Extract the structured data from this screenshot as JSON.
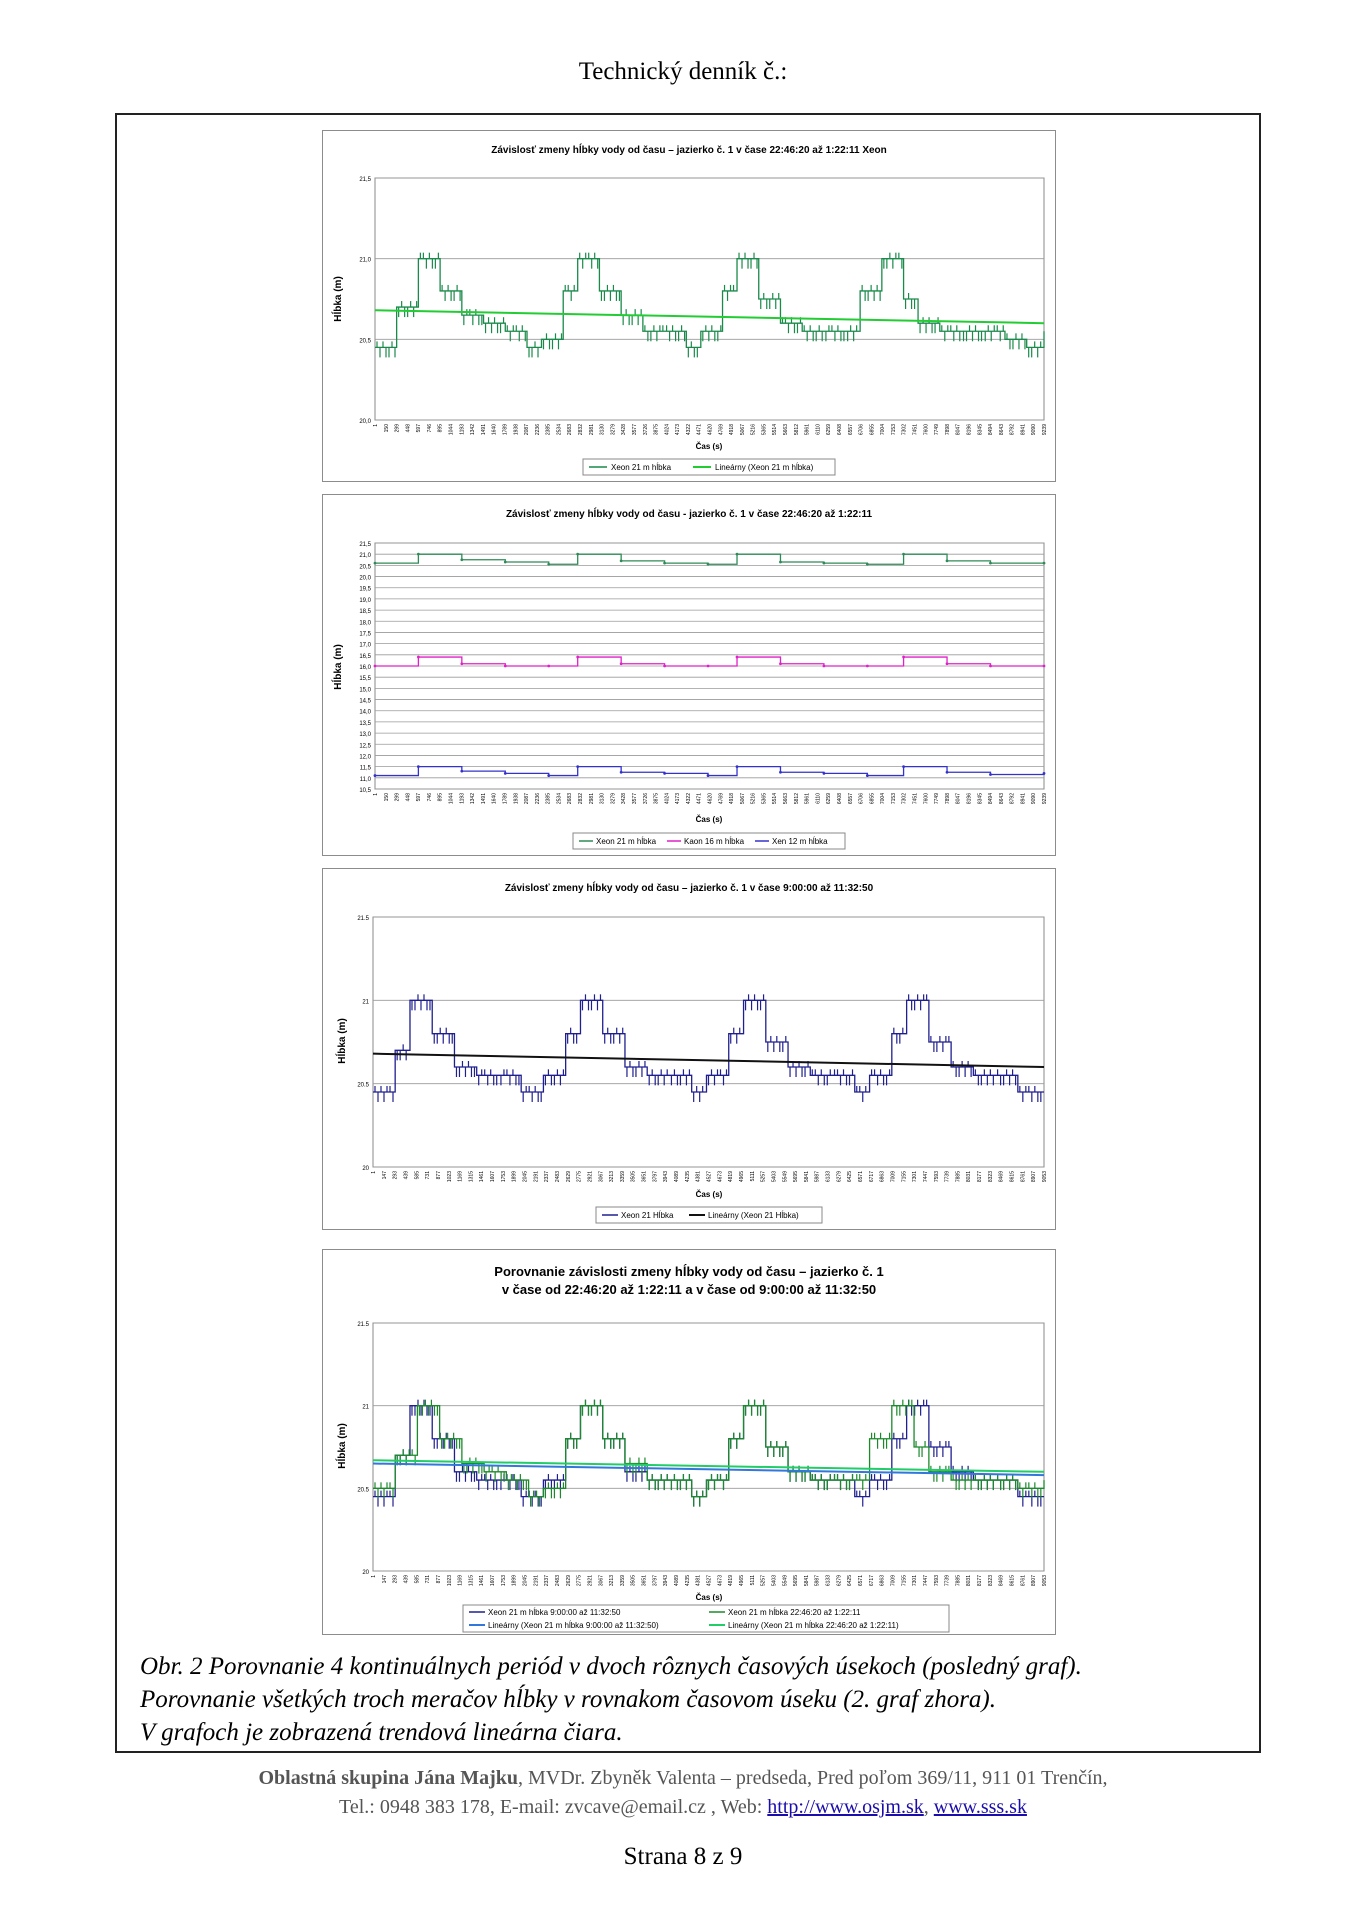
{
  "header": {
    "title": "Technický denník č.:"
  },
  "charts": [
    {
      "title": "Závislosť zmeny hĺbky vody od času – jazierko č. 1 v čase 22:46:20 až 1:22:11 Xeon",
      "ylabel": "Hĺbka (m)",
      "xlabel": "Čas (s)",
      "ytick_labels": [
        "21,5",
        "21,0",
        "20,5",
        "20,0"
      ],
      "xtick_labels": [
        "1",
        "150",
        "299",
        "448",
        "597",
        "746",
        "895",
        "1044",
        "1193",
        "1342",
        "1491",
        "1640",
        "1789",
        "1938",
        "2087",
        "2236",
        "2385",
        "2534",
        "2683",
        "2832",
        "2981",
        "3130",
        "3279",
        "3428",
        "3577",
        "3726",
        "3875",
        "4024",
        "4173",
        "4322",
        "4471",
        "4620",
        "4769",
        "4918",
        "5067",
        "5216",
        "5365",
        "5514",
        "5663",
        "5812",
        "5961",
        "6110",
        "6259",
        "6408",
        "6557",
        "6706",
        "6855",
        "7004",
        "7153",
        "7302",
        "7451",
        "7600",
        "7749",
        "7898",
        "8047",
        "8196",
        "8345",
        "8494",
        "8643",
        "8792",
        "8941",
        "9090",
        "9239"
      ],
      "legend": [
        "Xeon 21 m hĺbka",
        "Lineárny (Xeon 21 m hĺbka)"
      ],
      "colors": {
        "series": "#1a8a4a",
        "trend": "#22cc33"
      }
    },
    {
      "title": "Závislosť zmeny hĺbky vody od času - jazierko č. 1 v čase 22:46:20 až 1:22:11",
      "ylabel": "Hĺbka (m)",
      "xlabel": "Čas (s)",
      "ytick_labels": [
        "21,5",
        "21,0",
        "20,5",
        "20,0",
        "19,5",
        "19,0",
        "18,5",
        "18,0",
        "17,5",
        "17,0",
        "16,5",
        "16,0",
        "15,5",
        "15,0",
        "14,5",
        "14,0",
        "13,5",
        "13,0",
        "12,5",
        "12,0",
        "11,5",
        "11,0",
        "10,5"
      ],
      "xtick_labels": [
        "1",
        "150",
        "299",
        "448",
        "597",
        "746",
        "895",
        "1044",
        "1193",
        "1342",
        "1491",
        "1640",
        "1789",
        "1938",
        "2087",
        "2236",
        "2385",
        "2534",
        "2683",
        "2832",
        "2981",
        "3130",
        "3279",
        "3428",
        "3577",
        "3726",
        "3875",
        "4024",
        "4173",
        "4322",
        "4471",
        "4620",
        "4769",
        "4918",
        "5067",
        "5216",
        "5365",
        "5514",
        "5663",
        "5812",
        "5961",
        "6110",
        "6259",
        "6408",
        "6557",
        "6706",
        "6855",
        "7004",
        "7153",
        "7302",
        "7451",
        "7600",
        "7749",
        "7898",
        "8047",
        "8196",
        "8345",
        "8494",
        "8643",
        "8792",
        "8941",
        "9090",
        "9239"
      ],
      "legend": [
        "Xeon 21 m hĺbka",
        "Kaon 16 m hĺbka",
        "Xen 12 m hĺbka"
      ],
      "colors": {
        "s1": "#2e8b57",
        "s2": "#e020c8",
        "s3": "#3333cc"
      }
    },
    {
      "title": "Závislosť zmeny hĺbky vody od času – jazierko č. 1 v čase 9:00:00 až 11:32:50",
      "ylabel": "Hĺbka (m)",
      "xlabel": "Čas (s)",
      "ytick_labels": [
        "21.5",
        "21",
        "20.5",
        "20"
      ],
      "xtick_labels": [
        "1",
        "147",
        "293",
        "439",
        "585",
        "731",
        "877",
        "1023",
        "1169",
        "1315",
        "1461",
        "1607",
        "1753",
        "1899",
        "2045",
        "2191",
        "2337",
        "2483",
        "2629",
        "2775",
        "2921",
        "3067",
        "3213",
        "3359",
        "3505",
        "3651",
        "3797",
        "3943",
        "4089",
        "4235",
        "4381",
        "4527",
        "4673",
        "4819",
        "4965",
        "5111",
        "5257",
        "5403",
        "5549",
        "5695",
        "5841",
        "5987",
        "6133",
        "6279",
        "6425",
        "6571",
        "6717",
        "6863",
        "7009",
        "7155",
        "7301",
        "7447",
        "7593",
        "7739",
        "7885",
        "8031",
        "8177",
        "8323",
        "8469",
        "8615",
        "8761",
        "8907",
        "9053"
      ],
      "legend": [
        "Xeon 21 Hĺbka",
        "Lineárny (Xeon 21 Hĺbka)"
      ],
      "colors": {
        "series": "#1f1f8f",
        "trend": "#111111"
      }
    },
    {
      "title_line1": "Porovnanie závislosti zmeny hĺbky vody od času – jazierko č. 1",
      "title_line2": "v čase od 22:46:20 až 1:22:11 a v čase od 9:00:00 až 11:32:50",
      "ylabel": "Hĺbka (m)",
      "xlabel": "Čas (s)",
      "ytick_labels": [
        "21.5",
        "21",
        "20.5",
        "20"
      ],
      "xtick_labels": [
        "1",
        "147",
        "293",
        "439",
        "585",
        "731",
        "877",
        "1023",
        "1169",
        "1315",
        "1461",
        "1607",
        "1753",
        "1899",
        "2045",
        "2191",
        "2337",
        "2483",
        "2629",
        "2775",
        "2921",
        "3067",
        "3213",
        "3359",
        "3505",
        "3651",
        "3797",
        "3943",
        "4089",
        "4235",
        "4381",
        "4527",
        "4673",
        "4819",
        "4965",
        "5111",
        "5257",
        "5403",
        "5549",
        "5695",
        "5841",
        "5987",
        "6133",
        "6279",
        "6425",
        "6571",
        "6717",
        "6863",
        "7009",
        "7155",
        "7301",
        "7447",
        "7593",
        "7739",
        "7885",
        "8031",
        "8177",
        "8323",
        "8469",
        "8615",
        "8761",
        "8907",
        "9053"
      ],
      "legend": [
        "Xeon 21 m hĺbka 9:00:00 až 11:32:50",
        "Xeon 21 m hĺbka 22:46:20 až 1:22:11",
        "Lineárny (Xeon 21 m hĺbka 9:00:00 až 11:32:50)",
        "Lineárny (Xeon 21 m hĺbka 22:46:20 až 1:22:11)"
      ],
      "colors": {
        "s1": "#1f1f8f",
        "s2": "#1a8a2a",
        "t1": "#3377dd",
        "t2": "#22cc66"
      }
    }
  ],
  "caption": {
    "line1": "Obr. 2 Porovnanie 4 kontinuálnych periód v dvoch rôznych časových úsekoch (posledný graf).",
    "line2": "Porovnanie všetkých troch meračov hĺbky v rovnakom časovom úseku (2. graf zhora).",
    "line3": "V grafoch je zobrazená trendová lineárna čiara."
  },
  "footer": {
    "org": "Oblastná skupina Jána Majku",
    "rest": ", MVDr. Zbyněk Valenta – predseda, Pred poľom 369/11, 911 01 Trenčín,",
    "contact": "Tel.: 0948 383 178, E-mail: zvcave@email.cz , Web: ",
    "link1": "http://www.osjm.sk",
    "sep": ", ",
    "link2": "www.sss.sk"
  },
  "page": {
    "label": "Strana 8 z 9"
  },
  "chart_data": [
    {
      "type": "line",
      "title": "Závislosť zmeny hĺbky vody od času – jazierko č. 1 v čase 22:46:20 až 1:22:11 Xeon",
      "xlabel": "Čas (s)",
      "ylabel": "Hĺbka (m)",
      "ylim": [
        20.0,
        21.5
      ],
      "x_range": [
        1,
        9239
      ],
      "series": [
        {
          "name": "Xeon 21 m hĺbka",
          "x": [
            1,
            300,
            600,
            900,
            1200,
            1500,
            1800,
            2100,
            2300,
            2600,
            2800,
            3100,
            3400,
            3700,
            4000,
            4300,
            4500,
            4800,
            5000,
            5300,
            5600,
            5900,
            6200,
            6500,
            6700,
            7000,
            7300,
            7500,
            7800,
            8100,
            8400,
            8700,
            9000,
            9239
          ],
          "values": [
            20.45,
            20.7,
            21.0,
            20.8,
            20.65,
            20.6,
            20.55,
            20.45,
            20.5,
            20.8,
            21.0,
            20.8,
            20.65,
            20.55,
            20.55,
            20.45,
            20.55,
            20.8,
            21.0,
            20.75,
            20.6,
            20.55,
            20.55,
            20.55,
            20.8,
            21.0,
            20.75,
            20.6,
            20.55,
            20.55,
            20.55,
            20.5,
            20.45,
            20.55
          ]
        },
        {
          "name": "Lineárny (Xeon 21 m hĺbka)",
          "x": [
            1,
            9239
          ],
          "values": [
            20.68,
            20.6
          ]
        }
      ]
    },
    {
      "type": "line",
      "title": "Závislosť zmeny hĺbky vody od času - jazierko č. 1 v čase 22:46:20 až 1:22:11",
      "xlabel": "Čas (s)",
      "ylabel": "Hĺbka (m)",
      "ylim": [
        10.5,
        21.5
      ],
      "x_range": [
        1,
        9239
      ],
      "series": [
        {
          "name": "Xeon 21 m hĺbka",
          "x": [
            1,
            600,
            1200,
            1800,
            2400,
            2800,
            3400,
            4000,
            4600,
            5000,
            5600,
            6200,
            6800,
            7300,
            7900,
            8500,
            9239
          ],
          "values": [
            20.6,
            21.0,
            20.75,
            20.65,
            20.55,
            21.0,
            20.7,
            20.6,
            20.55,
            21.0,
            20.65,
            20.6,
            20.55,
            21.0,
            20.7,
            20.6,
            20.6
          ]
        },
        {
          "name": "Kaon 16 m hĺbka",
          "x": [
            1,
            600,
            1200,
            1800,
            2400,
            2800,
            3400,
            4000,
            4600,
            5000,
            5600,
            6200,
            6800,
            7300,
            7900,
            8500,
            9239
          ],
          "values": [
            16.0,
            16.4,
            16.1,
            16.0,
            16.0,
            16.4,
            16.1,
            16.0,
            16.0,
            16.4,
            16.1,
            16.0,
            16.0,
            16.4,
            16.1,
            16.0,
            16.0
          ]
        },
        {
          "name": "Xen 12 m hĺbka",
          "x": [
            1,
            600,
            1200,
            1800,
            2400,
            2800,
            3400,
            4000,
            4600,
            5000,
            5600,
            6200,
            6800,
            7300,
            7900,
            8500,
            9239
          ],
          "values": [
            11.1,
            11.5,
            11.3,
            11.2,
            11.1,
            11.5,
            11.25,
            11.2,
            11.1,
            11.5,
            11.25,
            11.2,
            11.1,
            11.5,
            11.25,
            11.15,
            11.2
          ]
        }
      ]
    },
    {
      "type": "line",
      "title": "Závislosť zmeny hĺbky vody od času – jazierko č. 1 v čase 9:00:00 až 11:32:50",
      "xlabel": "Čas (s)",
      "ylabel": "Hĺbka (m)",
      "ylim": [
        20,
        21.5
      ],
      "x_range": [
        1,
        9053
      ],
      "series": [
        {
          "name": "Xeon 21 Hĺbka",
          "x": [
            1,
            300,
            500,
            800,
            1100,
            1400,
            1700,
            2000,
            2300,
            2600,
            2800,
            3100,
            3400,
            3700,
            4000,
            4300,
            4500,
            4800,
            5000,
            5300,
            5600,
            5900,
            6200,
            6500,
            6700,
            7000,
            7200,
            7500,
            7800,
            8100,
            8400,
            8700,
            9053
          ],
          "values": [
            20.45,
            20.7,
            21.0,
            20.8,
            20.6,
            20.55,
            20.55,
            20.45,
            20.55,
            20.8,
            21.0,
            20.8,
            20.6,
            20.55,
            20.55,
            20.45,
            20.55,
            20.8,
            21.0,
            20.75,
            20.6,
            20.55,
            20.55,
            20.45,
            20.55,
            20.8,
            21.0,
            20.75,
            20.6,
            20.55,
            20.55,
            20.45,
            20.45
          ]
        },
        {
          "name": "Lineárny (Xeon 21 Hĺbka)",
          "x": [
            1,
            9053
          ],
          "values": [
            20.68,
            20.6
          ]
        }
      ]
    },
    {
      "type": "line",
      "title": "Porovnanie závislosti zmeny hĺbky vody od času – jazierko č. 1 v čase od 22:46:20 až 1:22:11 a v čase od 9:00:00 až 11:32:50",
      "xlabel": "Čas (s)",
      "ylabel": "Hĺbka (m)",
      "ylim": [
        20,
        21.5
      ],
      "x_range": [
        1,
        9053
      ],
      "series": [
        {
          "name": "Xeon 21 m hĺbka 9:00:00 až 11:32:50",
          "x": [
            1,
            300,
            500,
            800,
            1100,
            1400,
            1700,
            2000,
            2300,
            2600,
            2800,
            3100,
            3400,
            3700,
            4000,
            4300,
            4500,
            4800,
            5000,
            5300,
            5600,
            5900,
            6200,
            6500,
            6700,
            7000,
            7200,
            7500,
            7800,
            8100,
            8400,
            8700,
            9053
          ],
          "values": [
            20.45,
            20.7,
            21.0,
            20.8,
            20.6,
            20.55,
            20.55,
            20.45,
            20.55,
            20.8,
            21.0,
            20.8,
            20.6,
            20.55,
            20.55,
            20.45,
            20.55,
            20.8,
            21.0,
            20.75,
            20.6,
            20.55,
            20.55,
            20.45,
            20.55,
            20.8,
            21.0,
            20.75,
            20.6,
            20.55,
            20.55,
            20.45,
            20.45
          ]
        },
        {
          "name": "Xeon 21 m hĺbka 22:46:20 až 1:22:11",
          "x": [
            1,
            300,
            600,
            900,
            1200,
            1500,
            1800,
            2100,
            2300,
            2600,
            2800,
            3100,
            3400,
            3700,
            4000,
            4300,
            4500,
            4800,
            5000,
            5300,
            5600,
            5900,
            6200,
            6500,
            6700,
            7000,
            7300,
            7500,
            7800,
            8100,
            8400,
            8700,
            9053
          ],
          "values": [
            20.5,
            20.7,
            21.0,
            20.8,
            20.65,
            20.6,
            20.55,
            20.45,
            20.5,
            20.8,
            21.0,
            20.8,
            20.65,
            20.55,
            20.55,
            20.45,
            20.55,
            20.8,
            21.0,
            20.75,
            20.6,
            20.55,
            20.55,
            20.55,
            20.8,
            21.0,
            20.75,
            20.6,
            20.55,
            20.55,
            20.55,
            20.5,
            20.55
          ]
        },
        {
          "name": "Lineárny (Xeon 21 m hĺbka 9:00:00 až 11:32:50)",
          "x": [
            1,
            9053
          ],
          "values": [
            20.65,
            20.58
          ]
        },
        {
          "name": "Lineárny (Xeon 21 m hĺbka 22:46:20 až 1:22:11)",
          "x": [
            1,
            9053
          ],
          "values": [
            20.67,
            20.6
          ]
        }
      ]
    }
  ]
}
